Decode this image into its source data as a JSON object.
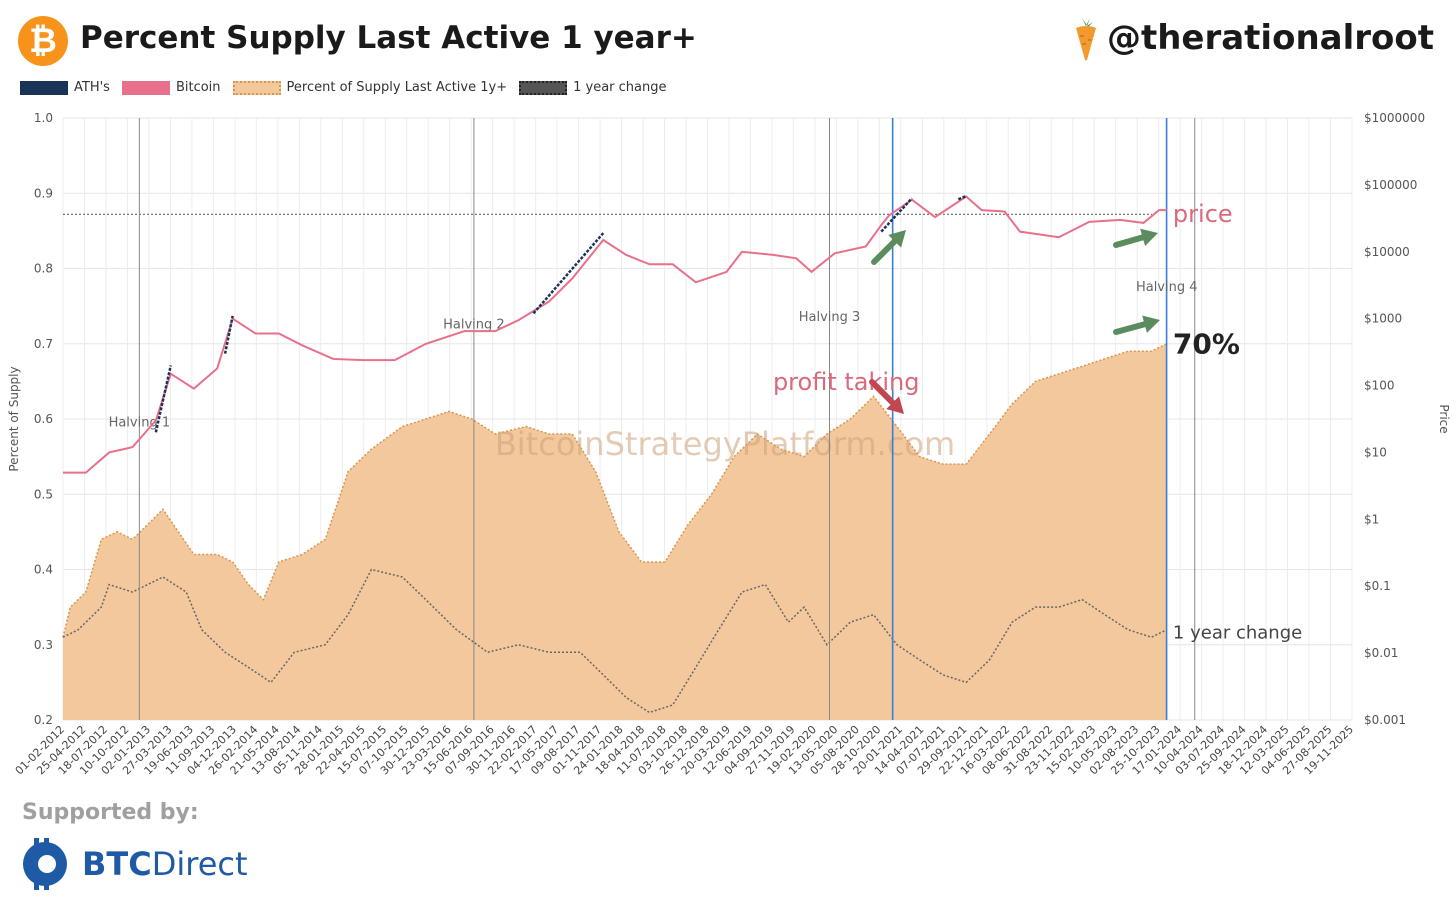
{
  "header": {
    "title": "Percent Supply Last Active 1 year+",
    "handle": "@therationalroot",
    "logo_glyph": "₿"
  },
  "legend": [
    {
      "label": "ATH's",
      "color": "#1b3358",
      "style": "solid"
    },
    {
      "label": "Bitcoin",
      "color": "#e8708a",
      "style": "solid"
    },
    {
      "label": "Percent of Supply Last Active 1y+",
      "color": "#f2c89c",
      "style": "dotted"
    },
    {
      "label": "1 year change",
      "color": "#555555",
      "style": "dotted"
    }
  ],
  "footer": {
    "supported_by": "Supported by:",
    "brand_bold": "BTC",
    "brand_rest": "Direct"
  },
  "chart_data": {
    "type": "area",
    "ylabel_left": "Percent of Supply",
    "ylabel_right": "Price",
    "ylim_left": [
      0.2,
      1.0
    ],
    "yticks_left": [
      "0.2",
      "0.3",
      "0.4",
      "0.5",
      "0.6",
      "0.7",
      "0.8",
      "0.9",
      "1.0"
    ],
    "yticks_right": [
      "$0.001",
      "$0.01",
      "$0.1",
      "$1",
      "$10",
      "$100",
      "$1000",
      "$10000",
      "$100000",
      "$1000000"
    ],
    "xlim": [
      "2012-02-01",
      "2025-12-31"
    ],
    "xtick_labels": [
      "01-02-2012",
      "25-04-2012",
      "18-07-2012",
      "10-10-2012",
      "02-01-2013",
      "27-03-2013",
      "19-06-2013",
      "11-09-2013",
      "04-12-2013",
      "26-02-2014",
      "21-05-2014",
      "13-08-2014",
      "05-11-2014",
      "28-01-2015",
      "22-04-2015",
      "15-07-2015",
      "07-10-2015",
      "30-12-2015",
      "23-03-2016",
      "15-06-2016",
      "07-09-2016",
      "30-11-2016",
      "22-02-2017",
      "17-05-2017",
      "09-08-2017",
      "01-11-2017",
      "24-01-2018",
      "18-04-2018",
      "11-07-2018",
      "03-10-2018",
      "26-12-2018",
      "20-03-2019",
      "12-06-2019",
      "04-09-2019",
      "27-11-2019",
      "19-02-2020",
      "13-05-2020",
      "05-08-2020",
      "28-10-2020",
      "20-01-2021",
      "14-04-2021",
      "07-07-2021",
      "29-09-2021",
      "22-12-2021",
      "16-03-2022",
      "08-06-2022",
      "31-08-2022",
      "23-11-2022",
      "15-02-2023",
      "10-05-2023",
      "02-08-2023",
      "25-10-2023",
      "17-01-2024",
      "10-04-2024",
      "03-07-2024",
      "25-09-2024",
      "18-12-2024",
      "12-03-2025",
      "04-06-2025",
      "27-08-2025",
      "19-11-2025"
    ],
    "grid": true,
    "watermark": "BitcoinStrategyPlatform.com",
    "series": [
      {
        "name": "Percent of Supply Last Active 1y+",
        "color": "#f2c89c",
        "points": [
          [
            "2012-02-01",
            0.31
          ],
          [
            "2012-03-01",
            0.35
          ],
          [
            "2012-05-01",
            0.37
          ],
          [
            "2012-07-01",
            0.44
          ],
          [
            "2012-09-01",
            0.45
          ],
          [
            "2012-11-01",
            0.44
          ],
          [
            "2013-01-01",
            0.46
          ],
          [
            "2013-03-01",
            0.48
          ],
          [
            "2013-05-01",
            0.45
          ],
          [
            "2013-07-01",
            0.42
          ],
          [
            "2013-10-01",
            0.42
          ],
          [
            "2013-12-01",
            0.41
          ],
          [
            "2014-02-01",
            0.38
          ],
          [
            "2014-04-01",
            0.36
          ],
          [
            "2014-06-01",
            0.41
          ],
          [
            "2014-09-01",
            0.42
          ],
          [
            "2014-12-01",
            0.44
          ],
          [
            "2015-03-01",
            0.53
          ],
          [
            "2015-06-01",
            0.56
          ],
          [
            "2015-10-01",
            0.59
          ],
          [
            "2016-01-01",
            0.6
          ],
          [
            "2016-04-01",
            0.61
          ],
          [
            "2016-07-01",
            0.6
          ],
          [
            "2016-10-01",
            0.58
          ],
          [
            "2017-02-01",
            0.59
          ],
          [
            "2017-05-01",
            0.58
          ],
          [
            "2017-08-01",
            0.58
          ],
          [
            "2017-11-01",
            0.53
          ],
          [
            "2018-02-01",
            0.45
          ],
          [
            "2018-05-01",
            0.41
          ],
          [
            "2018-08-01",
            0.41
          ],
          [
            "2018-11-01",
            0.46
          ],
          [
            "2019-02-01",
            0.5
          ],
          [
            "2019-05-01",
            0.55
          ],
          [
            "2019-08-01",
            0.58
          ],
          [
            "2019-11-01",
            0.56
          ],
          [
            "2020-02-01",
            0.55
          ],
          [
            "2020-05-01",
            0.58
          ],
          [
            "2020-08-01",
            0.6
          ],
          [
            "2020-11-01",
            0.63
          ],
          [
            "2021-02-01",
            0.59
          ],
          [
            "2021-05-01",
            0.55
          ],
          [
            "2021-08-01",
            0.54
          ],
          [
            "2021-11-01",
            0.54
          ],
          [
            "2022-02-01",
            0.58
          ],
          [
            "2022-05-01",
            0.62
          ],
          [
            "2022-08-01",
            0.65
          ],
          [
            "2022-11-01",
            0.66
          ],
          [
            "2023-02-01",
            0.67
          ],
          [
            "2023-05-01",
            0.68
          ],
          [
            "2023-08-01",
            0.69
          ],
          [
            "2023-11-01",
            0.69
          ],
          [
            "2024-01-01",
            0.7
          ]
        ]
      },
      {
        "name": "1 year change",
        "color": "#666666",
        "points": [
          [
            "2012-02-01",
            0.31
          ],
          [
            "2012-04-01",
            0.32
          ],
          [
            "2012-07-01",
            0.35
          ],
          [
            "2012-08-01",
            0.38
          ],
          [
            "2012-11-01",
            0.37
          ],
          [
            "2013-03-01",
            0.39
          ],
          [
            "2013-06-01",
            0.37
          ],
          [
            "2013-08-01",
            0.32
          ],
          [
            "2013-11-01",
            0.29
          ],
          [
            "2014-02-01",
            0.27
          ],
          [
            "2014-05-01",
            0.25
          ],
          [
            "2014-08-01",
            0.29
          ],
          [
            "2014-12-01",
            0.3
          ],
          [
            "2015-03-01",
            0.34
          ],
          [
            "2015-06-01",
            0.4
          ],
          [
            "2015-10-01",
            0.39
          ],
          [
            "2016-01-01",
            0.36
          ],
          [
            "2016-05-01",
            0.32
          ],
          [
            "2016-09-01",
            0.29
          ],
          [
            "2017-01-01",
            0.3
          ],
          [
            "2017-05-01",
            0.29
          ],
          [
            "2017-09-01",
            0.29
          ],
          [
            "2017-12-01",
            0.26
          ],
          [
            "2018-03-01",
            0.23
          ],
          [
            "2018-06-01",
            0.21
          ],
          [
            "2018-09-01",
            0.22
          ],
          [
            "2018-12-01",
            0.27
          ],
          [
            "2019-03-01",
            0.32
          ],
          [
            "2019-06-01",
            0.37
          ],
          [
            "2019-09-01",
            0.38
          ],
          [
            "2019-12-01",
            0.33
          ],
          [
            "2020-02-01",
            0.35
          ],
          [
            "2020-05-01",
            0.3
          ],
          [
            "2020-08-01",
            0.33
          ],
          [
            "2020-11-01",
            0.34
          ],
          [
            "2021-02-01",
            0.3
          ],
          [
            "2021-05-01",
            0.28
          ],
          [
            "2021-08-01",
            0.26
          ],
          [
            "2021-11-01",
            0.25
          ],
          [
            "2022-02-01",
            0.28
          ],
          [
            "2022-05-01",
            0.33
          ],
          [
            "2022-08-01",
            0.35
          ],
          [
            "2022-11-01",
            0.35
          ],
          [
            "2023-02-01",
            0.36
          ],
          [
            "2023-05-01",
            0.34
          ],
          [
            "2023-08-01",
            0.32
          ],
          [
            "2023-11-01",
            0.31
          ],
          [
            "2024-01-01",
            0.32
          ]
        ]
      },
      {
        "name": "Bitcoin",
        "color": "#e8708a",
        "points": [
          [
            "2012-02-01",
            5
          ],
          [
            "2012-05-01",
            5
          ],
          [
            "2012-08-01",
            10
          ],
          [
            "2012-11-01",
            12
          ],
          [
            "2013-02-01",
            30
          ],
          [
            "2013-04-01",
            150
          ],
          [
            "2013-07-01",
            90
          ],
          [
            "2013-10-01",
            180
          ],
          [
            "2013-12-01",
            1000
          ],
          [
            "2014-03-01",
            600
          ],
          [
            "2014-06-01",
            600
          ],
          [
            "2014-09-01",
            400
          ],
          [
            "2015-01-01",
            250
          ],
          [
            "2015-05-01",
            240
          ],
          [
            "2015-09-01",
            240
          ],
          [
            "2016-01-01",
            420
          ],
          [
            "2016-06-01",
            650
          ],
          [
            "2016-10-01",
            650
          ],
          [
            "2017-01-01",
            950
          ],
          [
            "2017-05-01",
            1800
          ],
          [
            "2017-08-01",
            4000
          ],
          [
            "2017-12-01",
            15000
          ],
          [
            "2018-03-01",
            9000
          ],
          [
            "2018-06-01",
            6500
          ],
          [
            "2018-09-01",
            6500
          ],
          [
            "2018-12-01",
            3500
          ],
          [
            "2019-04-01",
            5000
          ],
          [
            "2019-06-01",
            10000
          ],
          [
            "2019-10-01",
            9000
          ],
          [
            "2020-01-01",
            8000
          ],
          [
            "2020-03-01",
            5000
          ],
          [
            "2020-06-01",
            9500
          ],
          [
            "2020-10-01",
            12000
          ],
          [
            "2020-12-01",
            25000
          ],
          [
            "2021-01-01",
            35000
          ],
          [
            "2021-04-01",
            60000
          ],
          [
            "2021-07-01",
            33000
          ],
          [
            "2021-11-01",
            67000
          ],
          [
            "2022-01-01",
            42000
          ],
          [
            "2022-04-01",
            40000
          ],
          [
            "2022-06-01",
            20000
          ],
          [
            "2022-11-01",
            16500
          ],
          [
            "2023-03-01",
            28000
          ],
          [
            "2023-07-01",
            30000
          ],
          [
            "2023-10-01",
            27000
          ],
          [
            "2023-12-01",
            42000
          ],
          [
            "2024-01-01",
            42000
          ]
        ]
      },
      {
        "name": "ATH's",
        "color": "#1b3358",
        "segments": [
          [
            [
              "2013-02-01",
              20
            ],
            [
              "2013-04-01",
              200
            ]
          ],
          [
            [
              "2013-11-01",
              300
            ],
            [
              "2013-12-01",
              1100
            ]
          ],
          [
            [
              "2017-03-01",
              1200
            ],
            [
              "2017-12-01",
              19000
            ]
          ],
          [
            [
              "2020-12-01",
              20000
            ],
            [
              "2021-04-01",
              63000
            ]
          ],
          [
            [
              "2021-10-01",
              61000
            ],
            [
              "2021-11-01",
              68000
            ]
          ]
        ]
      }
    ],
    "vlines": [
      {
        "date": "2012-11-28",
        "label": "Halving 1",
        "color": "#888888"
      },
      {
        "date": "2016-07-09",
        "label": "Halving 2",
        "color": "#888888"
      },
      {
        "date": "2020-05-11",
        "label": "Halving 3",
        "color": "#888888"
      },
      {
        "date": "2024-04-20",
        "label": "Halving 4",
        "color": "#888888"
      },
      {
        "date": "2021-01-15",
        "label": "",
        "color": "#3b7dd8"
      },
      {
        "date": "2023-12-31",
        "label": "",
        "color": "#3b7dd8"
      }
    ],
    "hline": {
      "y": 0.872,
      "color": "#666666"
    },
    "annotations": [
      {
        "text": "price",
        "date": "2024-01-25",
        "y": 0.873,
        "color": "#d96a7d",
        "size": 24
      },
      {
        "text": "70%",
        "date": "2024-01-25",
        "y": 0.7,
        "color": "#222222",
        "size": 28
      },
      {
        "text": "profit taking",
        "date": "2019-10-01",
        "y": 0.65,
        "color": "#d96a7d",
        "size": 24
      },
      {
        "text": "1 year change",
        "date": "2024-01-25",
        "y": 0.317,
        "color": "#444444",
        "size": 18
      }
    ]
  }
}
